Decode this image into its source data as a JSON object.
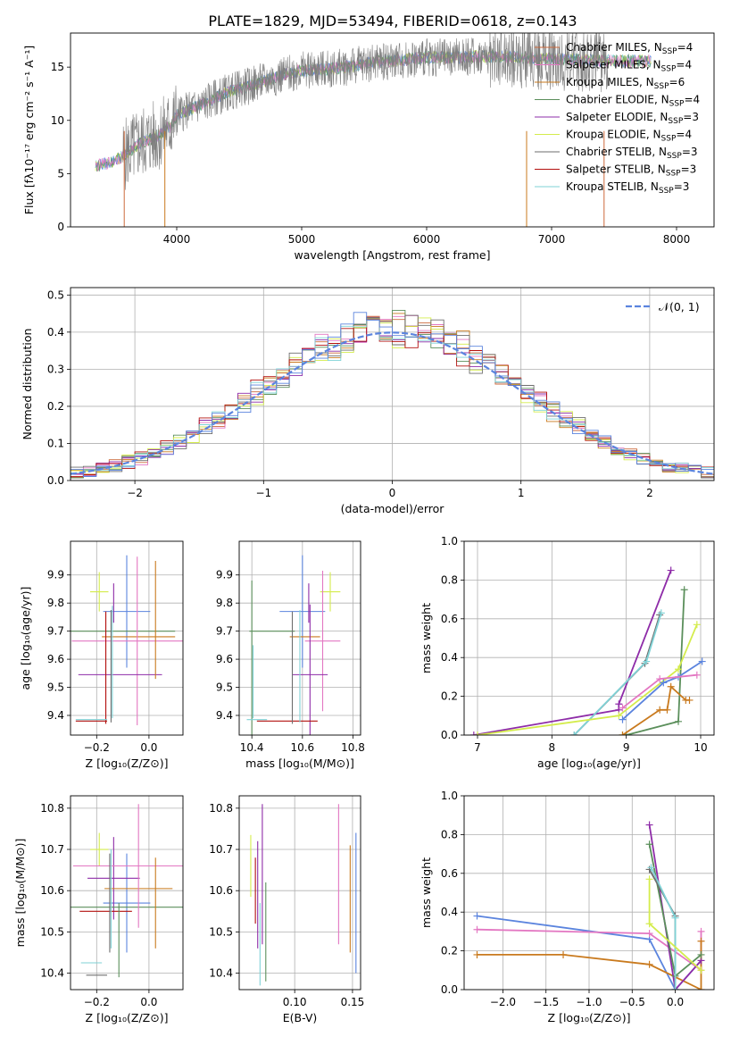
{
  "figure_title": "PLATE=1829, MJD=53494, FIBERID=0618, z=0.143",
  "colors": [
    "#cc6a3c",
    "#e377c2",
    "#c97a1e",
    "#5b8f5b",
    "#8e2ca8",
    "#d4ec4c",
    "#6e6e6e",
    "#b3100e",
    "#7fd2d6",
    "#5b84de"
  ],
  "chart_data": [
    {
      "id": "spectrum",
      "type": "line",
      "xlabel": "wavelength [Angstrom, rest frame]",
      "ylabel": "Flux [fλ10⁻¹⁷ erg cm⁻² s⁻¹ A⁻¹]",
      "xlim": [
        3150,
        8300
      ],
      "ylim": [
        0,
        18.2
      ],
      "xticks": [
        4000,
        5000,
        6000,
        7000,
        8000
      ],
      "yticks": [
        0,
        5,
        10,
        15
      ],
      "grid": false,
      "legend_position": "top-right",
      "observed_color": "#7f7f7f",
      "continuum": [
        [
          3350,
          5.7
        ],
        [
          3450,
          6.0
        ],
        [
          3550,
          6.5
        ],
        [
          3700,
          7.8
        ],
        [
          3850,
          8.6
        ],
        [
          3950,
          9.5
        ],
        [
          4000,
          10.5
        ],
        [
          4100,
          11.0
        ],
        [
          4200,
          11.5
        ],
        [
          4400,
          12.6
        ],
        [
          4600,
          13.3
        ],
        [
          4800,
          14.1
        ],
        [
          5000,
          14.7
        ],
        [
          5200,
          14.8
        ],
        [
          5400,
          15.1
        ],
        [
          5600,
          15.5
        ],
        [
          5800,
          15.7
        ],
        [
          6000,
          15.9
        ],
        [
          6200,
          15.9
        ],
        [
          6400,
          16.0
        ],
        [
          6600,
          16.0
        ],
        [
          6800,
          15.9
        ],
        [
          7000,
          15.8
        ],
        [
          7200,
          15.7
        ],
        [
          7400,
          15.6
        ],
        [
          7600,
          15.6
        ],
        [
          7800,
          15.6
        ]
      ],
      "observed_range": [
        3570,
        7450
      ],
      "series": [
        {
          "name": "Chabrier MILES, N",
          "sub": "SSP",
          "value": "=4",
          "color": "#cc6a3c"
        },
        {
          "name": "Salpeter MILES, N",
          "sub": "SSP",
          "value": "=4",
          "color": "#e377c2"
        },
        {
          "name": "Kroupa MILES, N",
          "sub": "SSP",
          "value": "=6",
          "color": "#c97a1e"
        },
        {
          "name": "Chabrier ELODIE, N",
          "sub": "SSP",
          "value": "=4",
          "color": "#5b8f5b"
        },
        {
          "name": "Salpeter ELODIE, N",
          "sub": "SSP",
          "value": "=3",
          "color": "#8e2ca8"
        },
        {
          "name": "Kroupa ELODIE, N",
          "sub": "SSP",
          "value": "=4",
          "color": "#d4ec4c"
        },
        {
          "name": "Chabrier STELIB, N",
          "sub": "SSP",
          "value": "=3",
          "color": "#6e6e6e"
        },
        {
          "name": "Salpeter STELIB, N",
          "sub": "SSP",
          "value": "=3",
          "color": "#b3100e"
        },
        {
          "name": "Kroupa STELIB, N",
          "sub": "SSP",
          "value": "=3",
          "color": "#7fd2d6"
        }
      ]
    },
    {
      "id": "residuals",
      "type": "step-histogram",
      "xlabel": "(data-model)/error",
      "ylabel": "Normed distribution",
      "xlim": [
        -2.5,
        2.5
      ],
      "ylim": [
        0,
        0.52
      ],
      "xticks": [
        -2,
        -1,
        0,
        1,
        2
      ],
      "yticks": [
        0.0,
        0.1,
        0.2,
        0.3,
        0.4,
        0.5
      ],
      "grid": true,
      "legend_position": "top-right",
      "reference_curve": {
        "name": "𝒩(0, 1)",
        "color": "#5b84de"
      },
      "bin_width": 0.1
    },
    {
      "id": "age-vs-z",
      "type": "errorbar",
      "xlabel": "Z [log₁₀(Z/Z⊙)]",
      "ylabel": "age  [log₁₀(age/yr)]",
      "xlim": [
        -0.3,
        0.13
      ],
      "ylim": [
        9.33,
        10.02
      ],
      "xticks": [
        -0.2,
        0.0
      ],
      "xticklabels": [
        "−0.2",
        "0.0"
      ],
      "yticks": [
        9.4,
        9.5,
        9.6,
        9.7,
        9.8,
        9.9
      ],
      "grid": true,
      "points": [
        {
          "x": -0.19,
          "y": 9.84,
          "xerr": 0.035,
          "yerr": 0.07,
          "c": 5
        },
        {
          "x": -0.085,
          "y": 9.77,
          "xerr": 0.09,
          "yerr": 0.2,
          "c": 9
        },
        {
          "x": -0.135,
          "y": 9.8,
          "xerr": 0.0,
          "yerr": 0.07,
          "c": 4
        },
        {
          "x": -0.15,
          "y": 9.7,
          "xerr": 0.25,
          "yerr": 0.0,
          "c": 3
        },
        {
          "x": -0.04,
          "y": 9.68,
          "xerr": 0.14,
          "yerr": 0.0,
          "c": 2
        },
        {
          "x": -0.045,
          "y": 9.665,
          "xerr": 0.25,
          "yerr": 0.3,
          "c": 1
        },
        {
          "x": -0.11,
          "y": 9.545,
          "xerr": 0.16,
          "yerr": 0.0,
          "c": 4
        },
        {
          "x": 0.025,
          "y": 9.74,
          "xerr": 0.0,
          "yerr": 0.21,
          "c": 2
        },
        {
          "x": -0.165,
          "y": 9.57,
          "xerr": 0.0,
          "yerr": 0.2,
          "c": 7
        },
        {
          "x": -0.145,
          "y": 9.575,
          "xerr": 0.0,
          "yerr": 0.2,
          "c": 6
        },
        {
          "x": -0.14,
          "y": 9.59,
          "xerr": 0.0,
          "yerr": 0.2,
          "c": 8
        },
        {
          "x": -0.22,
          "y": 9.385,
          "xerr": 0.06,
          "yerr": 0.0,
          "c": 8
        },
        {
          "x": -0.22,
          "y": 9.38,
          "xerr": 0.06,
          "yerr": 0.0,
          "c": 7
        }
      ]
    },
    {
      "id": "age-vs-mass",
      "type": "errorbar",
      "xlabel": "mass [log₁₀(M/M⊙)]",
      "ylabel": "",
      "xlim": [
        10.35,
        10.83
      ],
      "ylim": [
        9.33,
        10.02
      ],
      "xticks": [
        10.4,
        10.6,
        10.8
      ],
      "yticks": [
        9.4,
        9.5,
        9.6,
        9.7,
        9.8,
        9.9
      ],
      "grid": true,
      "points": [
        {
          "x": 10.71,
          "y": 9.84,
          "xerr": 0.04,
          "yerr": 0.07,
          "c": 5
        },
        {
          "x": 10.6,
          "y": 9.77,
          "xerr": 0.09,
          "yerr": 0.2,
          "c": 9
        },
        {
          "x": 10.625,
          "y": 9.8,
          "xerr": 0.0,
          "yerr": 0.07,
          "c": 4
        },
        {
          "x": 10.48,
          "y": 9.7,
          "xerr": 0.09,
          "yerr": 0.0,
          "c": 3
        },
        {
          "x": 10.61,
          "y": 9.68,
          "xerr": 0.06,
          "yerr": 0.0,
          "c": 2
        },
        {
          "x": 10.68,
          "y": 9.665,
          "xerr": 0.07,
          "yerr": 0.25,
          "c": 1
        },
        {
          "x": 10.63,
          "y": 9.545,
          "xerr": 0.07,
          "yerr": 0.25,
          "c": 4
        },
        {
          "x": 10.54,
          "y": 9.38,
          "xerr": 0.12,
          "yerr": 0.0,
          "c": 7
        },
        {
          "x": 10.56,
          "y": 9.57,
          "xerr": 0.0,
          "yerr": 0.2,
          "c": 6
        },
        {
          "x": 10.59,
          "y": 9.575,
          "xerr": 0.0,
          "yerr": 0.2,
          "c": 8
        },
        {
          "x": 10.4,
          "y": 9.55,
          "xerr": 0.0,
          "yerr": 0.33,
          "c": 3
        },
        {
          "x": 10.42,
          "y": 9.385,
          "xerr": 0.04,
          "yerr": 0.0,
          "c": 8
        },
        {
          "x": 10.405,
          "y": 9.52,
          "xerr": 0.0,
          "yerr": 0.13,
          "c": 8
        }
      ]
    },
    {
      "id": "mass-weight-vs-age",
      "type": "line",
      "xlabel": "age  [log₁₀(age/yr)]",
      "ylabel": "mass weight",
      "xlim": [
        6.82,
        10.18
      ],
      "ylim": [
        0,
        1.0
      ],
      "xticks": [
        7,
        8,
        9,
        10
      ],
      "yticks": [
        0.0,
        0.2,
        0.4,
        0.6,
        0.8,
        1.0
      ],
      "grid": true,
      "series": [
        {
          "c": 4,
          "x": [
            6.95,
            8.9,
            8.9,
            9.6
          ],
          "y": [
            0.0,
            0.13,
            0.16,
            0.85
          ]
        },
        {
          "c": 3,
          "x": [
            8.95,
            9.0,
            9.7,
            9.78
          ],
          "y": [
            0.0,
            0.0,
            0.07,
            0.75
          ]
        },
        {
          "c": 6,
          "x": [
            8.3,
            9.25,
            9.45
          ],
          "y": [
            0.0,
            0.37,
            0.62
          ]
        },
        {
          "c": 8,
          "x": [
            8.3,
            9.27,
            9.47
          ],
          "y": [
            0.0,
            0.38,
            0.63
          ]
        },
        {
          "c": 5,
          "x": [
            7.0,
            8.9,
            9.7,
            9.95
          ],
          "y": [
            0.0,
            0.1,
            0.34,
            0.57
          ]
        },
        {
          "c": 9,
          "x": [
            8.95,
            9.5,
            9.7,
            10.02
          ],
          "y": [
            0.08,
            0.27,
            0.3,
            0.38
          ]
        },
        {
          "c": 1,
          "x": [
            8.95,
            9.45,
            9.95
          ],
          "y": [
            0.14,
            0.29,
            0.31
          ]
        },
        {
          "c": 2,
          "x": [
            8.95,
            9.45,
            9.55,
            9.6,
            9.8,
            9.85
          ],
          "y": [
            0.0,
            0.13,
            0.13,
            0.25,
            0.18,
            0.18
          ]
        }
      ]
    },
    {
      "id": "mass-vs-z",
      "type": "errorbar",
      "xlabel": "Z [log₁₀(Z/Z⊙)]",
      "ylabel": "mass [log₁₀(M/M⊙)]",
      "xlim": [
        -0.3,
        0.13
      ],
      "ylim": [
        10.36,
        10.83
      ],
      "xticks": [
        -0.2,
        0.0
      ],
      "xticklabels": [
        "−0.2",
        "0.0"
      ],
      "yticks": [
        10.4,
        10.5,
        10.6,
        10.7,
        10.8
      ],
      "grid": true,
      "points": [
        {
          "x": -0.19,
          "y": 10.7,
          "xerr": 0.035,
          "yerr": 0.04,
          "c": 5
        },
        {
          "x": -0.085,
          "y": 10.57,
          "xerr": 0.09,
          "yerr": 0.12,
          "c": 9
        },
        {
          "x": -0.135,
          "y": 10.63,
          "xerr": 0.1,
          "yerr": 0.1,
          "c": 4
        },
        {
          "x": -0.1,
          "y": 10.56,
          "xerr": 0.23,
          "yerr": 0.0,
          "c": 3
        },
        {
          "x": -0.04,
          "y": 10.605,
          "xerr": 0.13,
          "yerr": 0.0,
          "c": 2
        },
        {
          "x": -0.04,
          "y": 10.66,
          "xerr": 0.25,
          "yerr": 0.15,
          "c": 1
        },
        {
          "x": 0.025,
          "y": 10.57,
          "xerr": 0.0,
          "yerr": 0.11,
          "c": 2
        },
        {
          "x": -0.165,
          "y": 10.55,
          "xerr": 0.1,
          "yerr": 0.0,
          "c": 7
        },
        {
          "x": -0.15,
          "y": 10.57,
          "xerr": 0.0,
          "yerr": 0.12,
          "c": 6
        },
        {
          "x": -0.145,
          "y": 10.58,
          "xerr": 0.0,
          "yerr": 0.12,
          "c": 8
        },
        {
          "x": -0.22,
          "y": 10.425,
          "xerr": 0.04,
          "yerr": 0.0,
          "c": 8
        },
        {
          "x": -0.2,
          "y": 10.395,
          "xerr": 0.04,
          "yerr": 0.0,
          "c": 6
        },
        {
          "x": -0.115,
          "y": 10.48,
          "xerr": 0.0,
          "yerr": 0.09,
          "c": 3
        }
      ]
    },
    {
      "id": "mass-vs-ebv",
      "type": "errorbar",
      "xlabel": "E(B-V)",
      "ylabel": "",
      "xlim": [
        0.052,
        0.157
      ],
      "ylim": [
        10.36,
        10.83
      ],
      "xticks": [
        0.1,
        0.15
      ],
      "xticklabels": [
        "0.10",
        "0.15"
      ],
      "yticks": [
        10.4,
        10.5,
        10.6,
        10.7,
        10.8
      ],
      "grid": true,
      "points": [
        {
          "x": 0.062,
          "y": 10.66,
          "xerr": 0.0,
          "yerr": 0.075,
          "c": 5
        },
        {
          "x": 0.066,
          "y": 10.6,
          "xerr": 0.0,
          "yerr": 0.08,
          "c": 7
        },
        {
          "x": 0.068,
          "y": 10.59,
          "xerr": 0.0,
          "yerr": 0.13,
          "c": 4
        },
        {
          "x": 0.07,
          "y": 10.47,
          "xerr": 0.0,
          "yerr": 0.1,
          "c": 8
        },
        {
          "x": 0.072,
          "y": 10.64,
          "xerr": 0.0,
          "yerr": 0.17,
          "c": 4
        },
        {
          "x": 0.075,
          "y": 10.5,
          "xerr": 0.0,
          "yerr": 0.12,
          "c": 3
        },
        {
          "x": 0.138,
          "y": 10.64,
          "xerr": 0.0,
          "yerr": 0.17,
          "c": 1
        },
        {
          "x": 0.148,
          "y": 10.58,
          "xerr": 0.0,
          "yerr": 0.13,
          "c": 2
        },
        {
          "x": 0.153,
          "y": 10.57,
          "xerr": 0.0,
          "yerr": 0.17,
          "c": 9
        }
      ]
    },
    {
      "id": "mass-weight-vs-z",
      "type": "line",
      "xlabel": "Z [log₁₀(Z/Z⊙)]",
      "ylabel": "mass weight",
      "xlim": [
        -2.45,
        0.45
      ],
      "ylim": [
        0,
        1.0
      ],
      "xticks": [
        -2.0,
        -1.5,
        -1.0,
        -0.5,
        0.0
      ],
      "xticklabels": [
        "−2.0",
        "−1.5",
        "−1.0",
        "−0.5",
        "0.0"
      ],
      "yticks": [
        0.0,
        0.2,
        0.4,
        0.6,
        0.8,
        1.0
      ],
      "grid": true,
      "series": [
        {
          "c": 9,
          "x": [
            -2.3,
            -0.3,
            0.0,
            0.3
          ],
          "y": [
            0.38,
            0.26,
            0.0,
            0.15
          ]
        },
        {
          "c": 1,
          "x": [
            -2.3,
            -0.3,
            0.3,
            0.3
          ],
          "y": [
            0.31,
            0.29,
            0.1,
            0.3
          ]
        },
        {
          "c": 2,
          "x": [
            -2.3,
            -1.3,
            -0.3,
            0.3,
            0.3
          ],
          "y": [
            0.18,
            0.18,
            0.13,
            0.0,
            0.25
          ]
        },
        {
          "c": 4,
          "x": [
            -0.3,
            0.0,
            0.3
          ],
          "y": [
            0.85,
            0.0,
            0.15
          ]
        },
        {
          "c": 3,
          "x": [
            -0.3,
            0.0,
            0.3
          ],
          "y": [
            0.75,
            0.07,
            0.18
          ]
        },
        {
          "c": 6,
          "x": [
            -0.3,
            0.0,
            0.0
          ],
          "y": [
            0.62,
            0.38,
            0.0
          ]
        },
        {
          "c": 8,
          "x": [
            -0.28,
            0.0,
            0.0
          ],
          "y": [
            0.63,
            0.37,
            0.0
          ]
        },
        {
          "c": 5,
          "x": [
            -0.3,
            -0.3,
            0.3
          ],
          "y": [
            0.57,
            0.34,
            0.1
          ]
        }
      ]
    }
  ]
}
